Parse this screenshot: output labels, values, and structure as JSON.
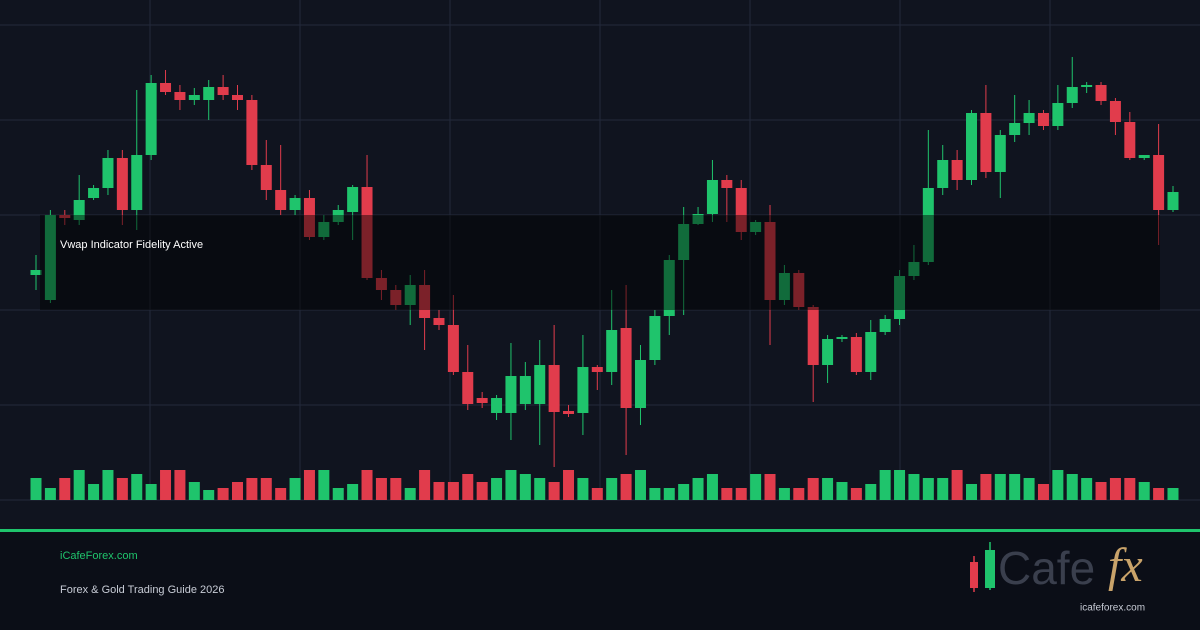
{
  "chart_data": {
    "type": "candlestick",
    "annotation": "Vwap Indicator Fidelity Active",
    "open": [
      225,
      200,
      285,
      280,
      302,
      312,
      342,
      290,
      345,
      417,
      408,
      400,
      400,
      413,
      405,
      400,
      335,
      310,
      290,
      302,
      263,
      278,
      288,
      313,
      222,
      210,
      195,
      215,
      182,
      175,
      128,
      102,
      87,
      87,
      96,
      96,
      135,
      89,
      87,
      133,
      128,
      172,
      92,
      140,
      184,
      240,
      276,
      286,
      320,
      312,
      268,
      278,
      200,
      227,
      193,
      135,
      161,
      163,
      128,
      168,
      181,
      224,
      238,
      312,
      340,
      320,
      387,
      328,
      365,
      377,
      387,
      374,
      397,
      413,
      415,
      399,
      378,
      342,
      345,
      290
    ],
    "high": [
      245,
      290,
      290,
      325,
      315,
      350,
      350,
      410,
      425,
      430,
      415,
      412,
      420,
      425,
      415,
      405,
      360,
      355,
      305,
      310,
      285,
      295,
      315,
      345,
      230,
      215,
      225,
      230,
      190,
      205,
      155,
      108,
      105,
      157,
      138,
      160,
      175,
      95,
      165,
      135,
      210,
      215,
      155,
      190,
      245,
      293,
      293,
      340,
      325,
      320,
      280,
      295,
      235,
      230,
      195,
      165,
      165,
      167,
      180,
      185,
      230,
      255,
      370,
      355,
      350,
      390,
      415,
      370,
      405,
      400,
      390,
      415,
      443,
      418,
      418,
      402,
      388,
      345,
      376,
      314
    ],
    "low": [
      210,
      197,
      275,
      275,
      300,
      305,
      275,
      270,
      340,
      405,
      390,
      395,
      380,
      400,
      390,
      330,
      300,
      285,
      285,
      260,
      260,
      275,
      260,
      220,
      200,
      190,
      175,
      150,
      170,
      125,
      90,
      92,
      80,
      60,
      90,
      55,
      33,
      83,
      65,
      110,
      115,
      45,
      75,
      135,
      165,
      185,
      275,
      278,
      278,
      260,
      265,
      155,
      195,
      190,
      98,
      117,
      158,
      125,
      120,
      165,
      175,
      220,
      235,
      305,
      310,
      315,
      322,
      302,
      358,
      365,
      370,
      370,
      392,
      407,
      395,
      365,
      340,
      340,
      255,
      288
    ],
    "close": [
      230,
      285,
      282,
      300,
      312,
      342,
      290,
      345,
      417,
      408,
      400,
      405,
      413,
      405,
      400,
      335,
      310,
      290,
      302,
      263,
      278,
      290,
      313,
      222,
      210,
      195,
      215,
      182,
      175,
      128,
      96,
      97,
      102,
      124,
      124,
      135,
      88,
      86,
      133,
      128,
      170,
      92,
      140,
      184,
      240,
      276,
      286,
      320,
      312,
      268,
      278,
      200,
      227,
      193,
      135,
      161,
      163,
      128,
      168,
      181,
      224,
      238,
      312,
      340,
      320,
      387,
      328,
      365,
      377,
      387,
      374,
      397,
      413,
      415,
      399,
      378,
      342,
      345,
      290,
      308
    ],
    "volume": [
      22,
      12,
      22,
      30,
      16,
      30,
      22,
      26,
      16,
      30,
      30,
      18,
      10,
      12,
      18,
      22,
      22,
      12,
      22,
      30,
      30,
      12,
      16,
      30,
      22,
      22,
      12,
      30,
      18,
      18,
      26,
      18,
      22,
      30,
      26,
      22,
      18,
      30,
      22,
      12,
      22,
      26,
      30,
      12,
      12,
      16,
      22,
      26,
      12,
      12,
      26,
      26,
      12,
      12,
      22,
      22,
      18,
      12,
      16,
      30,
      30,
      26,
      22,
      22,
      30,
      16,
      26,
      26,
      26,
      22,
      16,
      30,
      26,
      22,
      18,
      22,
      22,
      18,
      12,
      12
    ],
    "ylim": [
      0,
      500
    ],
    "yticks": [
      0,
      95,
      190,
      285,
      380,
      475
    ],
    "volume_ylim": [
      0,
      100
    ],
    "up_color": "#1fc46c",
    "down_color": "#e13c4c",
    "grid": true
  },
  "footer": {
    "site": "iCafeForex.com",
    "subtitle": "Forex & Gold Trading Guide 2026",
    "logo_main": "Cafe",
    "logo_fx": "fx",
    "logo_url": "icafeforex.com"
  }
}
